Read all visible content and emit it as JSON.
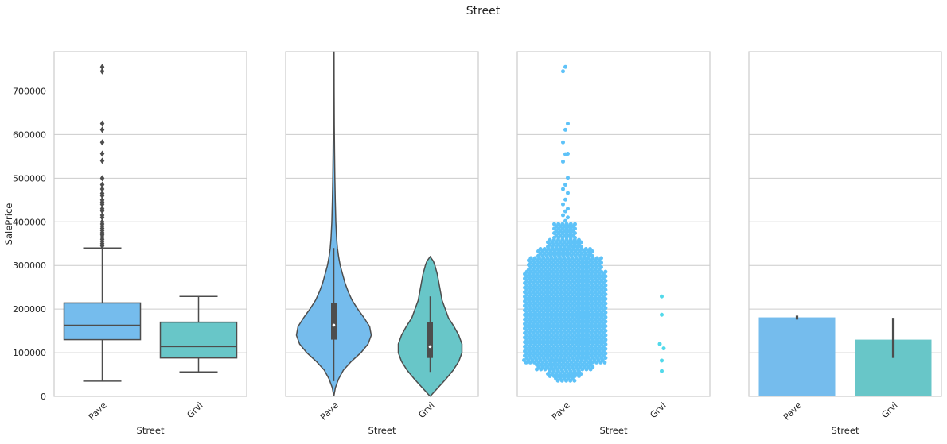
{
  "figure": {
    "title": "Street"
  },
  "colors": {
    "Pave": "#75bced",
    "Grvl": "#68c6c8",
    "swarm_Pave": "#5ec2f8",
    "swarm_Grvl": "#52d9ea",
    "line": "#4d4d4d"
  },
  "chart_data": [
    {
      "type": "box",
      "xlabel": "Street",
      "ylabel": "SalePrice",
      "ylim": [
        0,
        790000
      ],
      "yticks": [
        "0",
        "100000",
        "200000",
        "300000",
        "400000",
        "500000",
        "600000",
        "700000"
      ],
      "grid": true,
      "categories": [
        "Pave",
        "Grvl"
      ],
      "boxes": [
        {
          "category": "Pave",
          "whisker_low": 34900,
          "q1": 130000,
          "median": 163000,
          "q3": 214000,
          "whisker_high": 340000,
          "outliers": [
            345000,
            350000,
            355000,
            360000,
            365000,
            370000,
            375000,
            380000,
            385000,
            390000,
            395000,
            400000,
            410000,
            415000,
            425000,
            430000,
            440000,
            445000,
            450000,
            460000,
            465000,
            475000,
            485000,
            500000,
            540000,
            556000,
            582000,
            611000,
            625000,
            745000,
            755000
          ]
        },
        {
          "category": "Grvl",
          "whisker_low": 55993,
          "q1": 88000,
          "median": 114000,
          "q3": 170000,
          "whisker_high": 228950,
          "outliers": []
        }
      ]
    },
    {
      "type": "violin",
      "xlabel": "Street",
      "ylim": [
        0,
        790000
      ],
      "grid": true,
      "categories": [
        "Pave",
        "Grvl"
      ],
      "violins": [
        {
          "category": "Pave",
          "extent": [
            0,
            790000
          ],
          "q1": 130000,
          "median": 163000,
          "q3": 214000,
          "whisker_low": 34900,
          "whisker_high": 340000
        },
        {
          "category": "Grvl",
          "extent": [
            0,
            320000
          ],
          "q1": 88000,
          "median": 114000,
          "q3": 170000,
          "whisker_low": 55993,
          "whisker_high": 228950
        }
      ]
    },
    {
      "type": "scatter",
      "subtype": "swarm",
      "xlabel": "Street",
      "ylim": [
        0,
        790000
      ],
      "grid": true,
      "categories": [
        "Pave",
        "Grvl"
      ],
      "highlights": {
        "Pave": [
          755000,
          745000,
          625000,
          611000,
          582000,
          556000,
          555000,
          538000,
          501000,
          485000,
          475000,
          466000,
          451000,
          440000,
          430000,
          424000,
          415000,
          410000,
          402000
        ],
        "Grvl": [
          228950,
          187000,
          120000,
          110000,
          82000,
          58000
        ]
      }
    },
    {
      "type": "bar",
      "xlabel": "Street",
      "ylim": [
        0,
        790000
      ],
      "grid": true,
      "categories": [
        "Pave",
        "Grvl"
      ],
      "values": [
        181000,
        130000
      ],
      "errors": [
        [
          176000,
          185000
        ],
        [
          88000,
          180000
        ]
      ]
    }
  ]
}
